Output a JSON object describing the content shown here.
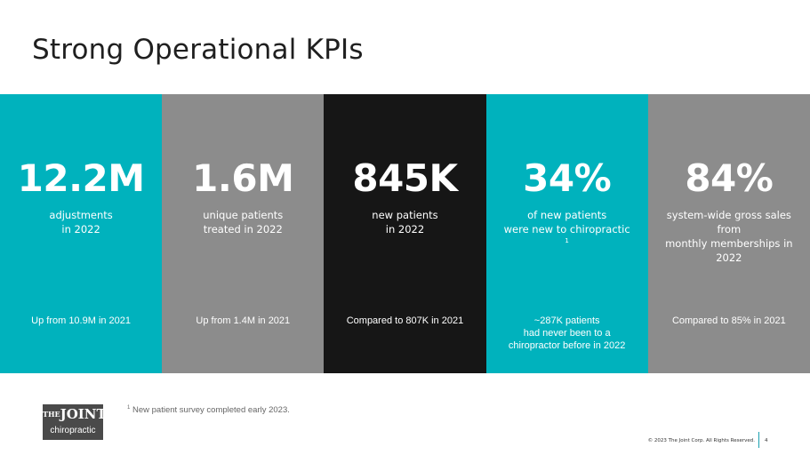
{
  "page": {
    "title": "Strong Operational KPIs"
  },
  "colors": {
    "teal": "#00b2bd",
    "gray": "#8c8c8c",
    "black": "#161616"
  },
  "kpis": [
    {
      "value": "12.2M",
      "desc": [
        "adjustments",
        "in 2022"
      ],
      "foot": [
        "Up from 10.9M in 2021"
      ],
      "color": "#00b2bd"
    },
    {
      "value": "1.6M",
      "desc": [
        "unique patients",
        "treated in 2022"
      ],
      "foot": [
        "Up from 1.4M in 2021"
      ],
      "color": "#8c8c8c"
    },
    {
      "value": "845K",
      "desc": [
        "new patients",
        "in 2022"
      ],
      "foot": [
        "Compared to 807K in 2021"
      ],
      "color": "#161616"
    },
    {
      "value": "34%",
      "desc": [
        "of new patients",
        "were new to chiropractic"
      ],
      "desc_footnote": "1",
      "foot": [
        "~287K patients",
        "had never been to a",
        "chiropractor before in 2022"
      ],
      "color": "#00b2bd"
    },
    {
      "value": "84%",
      "desc": [
        "system-wide gross sales from",
        "monthly memberships in 2022"
      ],
      "foot": [
        "Compared to 85% in 2021"
      ],
      "color": "#8c8c8c"
    }
  ],
  "logo": {
    "the": "THE",
    "joint": "JOINT",
    "sub": "chiropractic"
  },
  "footnote": {
    "marker": "1",
    "text": "New patient survey completed early 2023."
  },
  "footer": {
    "copyright": "© 2023 The Joint Corp. All Rights Reserved.",
    "page_number": "4"
  }
}
